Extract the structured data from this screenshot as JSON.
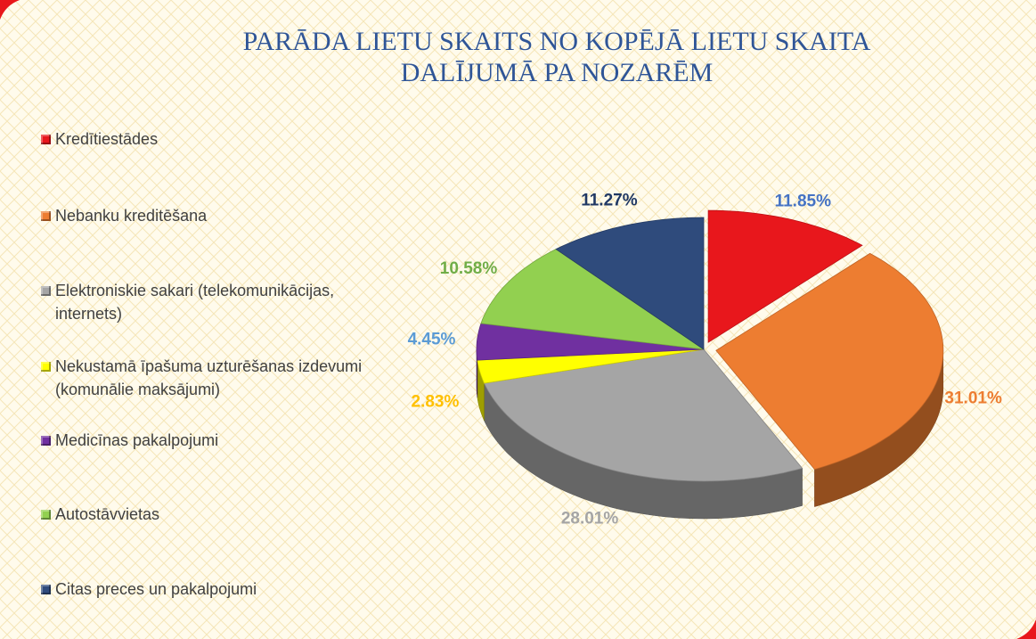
{
  "chart_data": {
    "type": "pie",
    "title": [
      "PARĀDA LIETU SKAITS NO KOPĒJĀ LIETU SKAITA",
      "DALĪJUMĀ PA NOZARĒM"
    ],
    "categories": [
      "Kredītiestādes",
      "Nebanku kreditēšana",
      "Elektroniskie sakari (telekomunikācijas, internets)",
      "Nekustamā īpašuma uzturēšanas izdevumi (komunālie maksājumi)",
      "Medicīnas pakalpojumi",
      "Autostāvvietas",
      "Citas preces un pakalpojumi"
    ],
    "values": [
      11.85,
      31.01,
      28.01,
      2.83,
      4.45,
      10.58,
      11.27
    ],
    "value_labels": [
      "11.85%",
      "31.01%",
      "28.01%",
      "2.83%",
      "4.45%",
      "10.58%",
      "11.27%"
    ],
    "colors": [
      "#e8171c",
      "#ed7d31",
      "#a5a5a5",
      "#ffff00",
      "#7030a0",
      "#92d050",
      "#2f4b7c"
    ],
    "label_colors": [
      "#4472c4",
      "#ed7d31",
      "#a5a5a5",
      "#ffc000",
      "#5b9bd5",
      "#70ad47",
      "#203864"
    ],
    "legend": "left"
  }
}
